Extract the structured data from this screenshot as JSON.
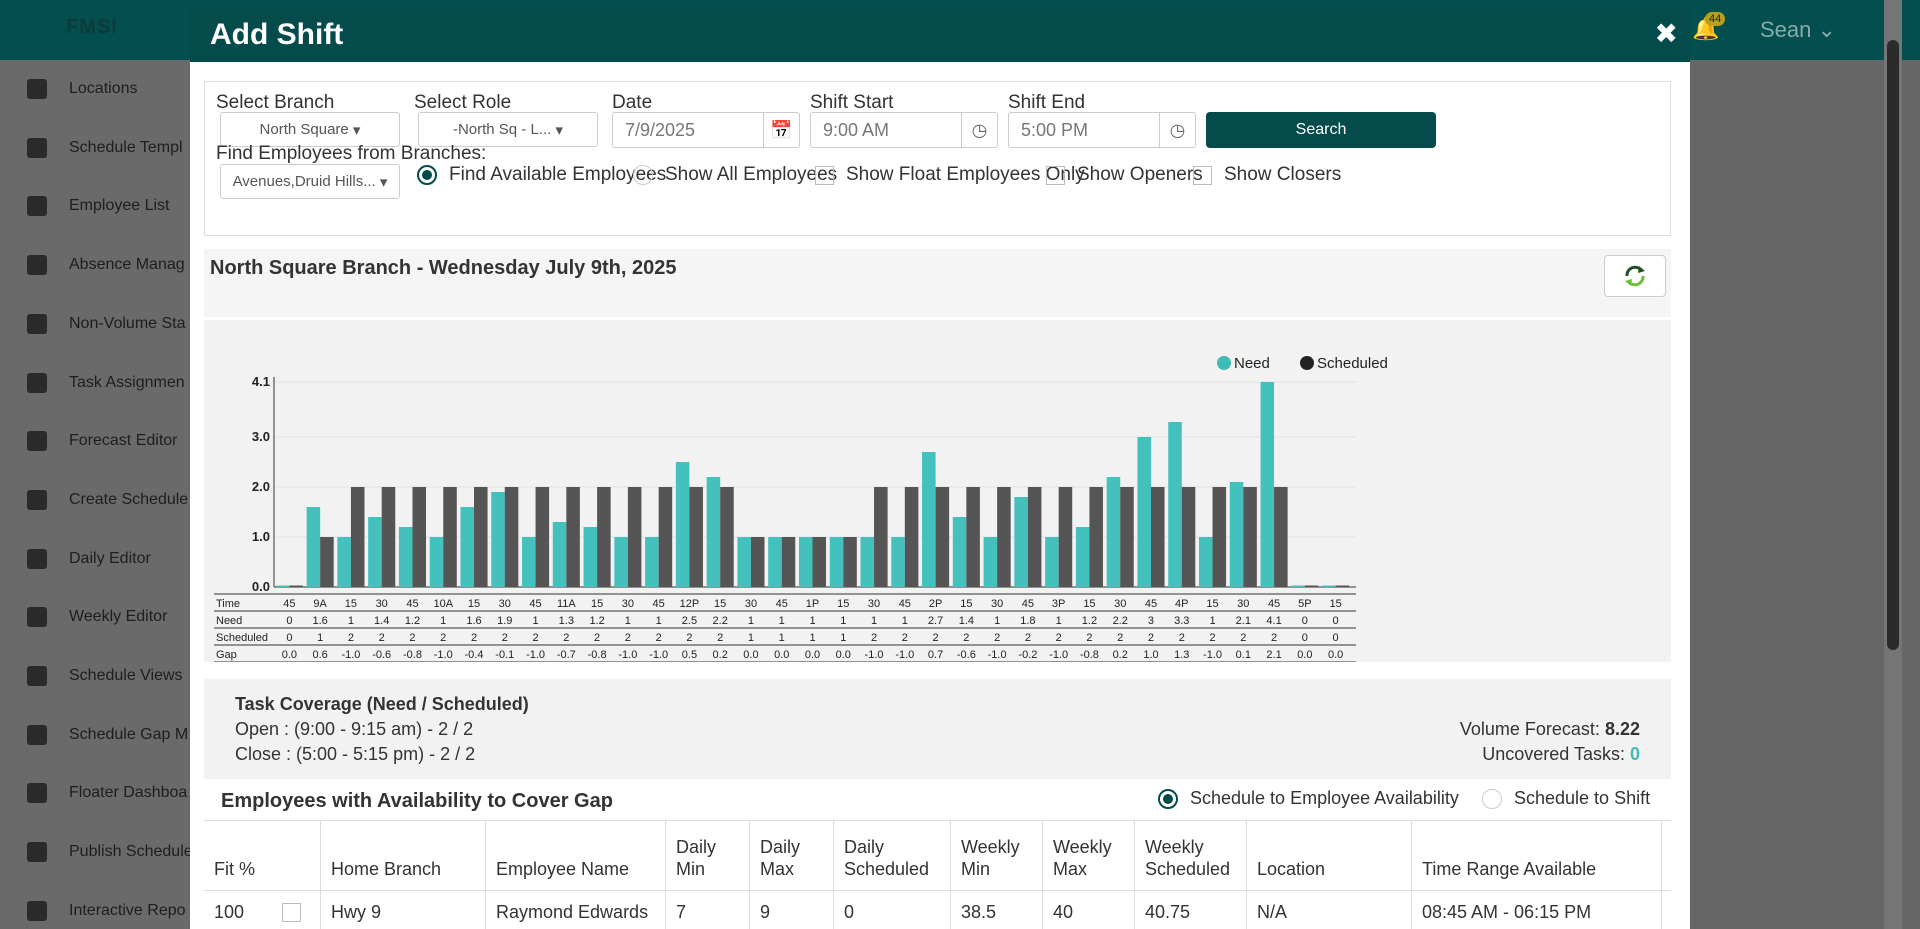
{
  "app": {
    "logo": "FMSI",
    "notifications": "44",
    "user": "Sean"
  },
  "sidebar": {
    "items": [
      {
        "label": "Locations",
        "icon": "location-icon"
      },
      {
        "label": "Schedule Templ",
        "icon": "clipboard-icon"
      },
      {
        "label": "Employee List",
        "icon": "id-card-icon"
      },
      {
        "label": "Absence Manag",
        "icon": "user-gear-icon"
      },
      {
        "label": "Non-Volume Sta",
        "icon": "id-badge-icon"
      },
      {
        "label": "Task Assignmen",
        "icon": "list-check-icon"
      },
      {
        "label": "Forecast Editor",
        "icon": "bar-chart-icon"
      },
      {
        "label": "Create Schedule",
        "icon": "calendar-plus-icon"
      },
      {
        "label": "Daily Editor",
        "icon": "calendar-day-icon"
      },
      {
        "label": "Weekly Editor",
        "icon": "calendar-week-icon"
      },
      {
        "label": "Schedule Views",
        "icon": "binoculars-icon"
      },
      {
        "label": "Schedule Gap M",
        "icon": "users-gap-icon"
      },
      {
        "label": "Floater Dashboa",
        "icon": "list-icon"
      },
      {
        "label": "Publish Schedule",
        "icon": "calendar-check-icon"
      },
      {
        "label": "Interactive Repo",
        "icon": "report-icon"
      }
    ]
  },
  "modal": {
    "title": "Add Shift",
    "filters": {
      "branch_label": "Select Branch",
      "branch_value": "North Square",
      "role_label": "Select Role",
      "role_value": "-North Sq - L...",
      "date_label": "Date",
      "date_value": "7/9/2025",
      "start_label": "Shift Start",
      "start_value": "9:00 AM",
      "end_label": "Shift End",
      "end_value": "5:00 PM",
      "search_label": "Search",
      "find_label": "Find Employees from Branches:",
      "find_value": "Avenues,Druid Hills...",
      "opt_available": "Find Available Employees",
      "opt_all": "Show All Employees",
      "opt_float": "Show Float Employees Only",
      "opt_openers": "Show Openers",
      "opt_closers": "Show Closers"
    },
    "branch_title": "North Square Branch - Wednesday July 9th, 2025",
    "coverage": {
      "title": "Task Coverage (Need / Scheduled)",
      "open": "Open : (9:00 - 9:15 am) - 2 / 2",
      "close": "Close : (5:00 - 5:15 pm) - 2 / 2",
      "volume_label": "Volume Forecast:",
      "volume_value": "8.22",
      "uncovered_label": "Uncovered Tasks:",
      "uncovered_value": "0"
    },
    "employees": {
      "title": "Employees with Availability to Cover Gap",
      "opt_availability": "Schedule to Employee Availability",
      "opt_shift": "Schedule to Shift",
      "columns": [
        "Fit %",
        "Home Branch",
        "Employee Name",
        "Daily Min",
        "Daily Max",
        "Daily Scheduled",
        "Weekly Min",
        "Weekly Max",
        "Weekly Scheduled",
        "Location",
        "Time Range Available"
      ],
      "rows": [
        [
          "100",
          "Hwy 9",
          "Raymond Edwards",
          "7",
          "9",
          "0",
          "38.5",
          "40",
          "40.75",
          "N/A",
          "08:45 AM - 06:15 PM"
        ]
      ]
    }
  },
  "chart_data": {
    "type": "bar",
    "legend_position": "top-right",
    "ylim": [
      0,
      4.1
    ],
    "yticks": [
      "0.0",
      "1.0",
      "2.0",
      "3.0",
      "4.1"
    ],
    "categories": [
      "45",
      "9A",
      "15",
      "30",
      "45",
      "10A",
      "15",
      "30",
      "45",
      "11A",
      "15",
      "30",
      "45",
      "12P",
      "15",
      "30",
      "45",
      "1P",
      "15",
      "30",
      "45",
      "2P",
      "15",
      "30",
      "45",
      "3P",
      "15",
      "30",
      "45",
      "4P",
      "15",
      "30",
      "45",
      "5P",
      "15"
    ],
    "series": [
      {
        "name": "Need",
        "color": "#45c1bd",
        "values": [
          0,
          1.6,
          1,
          1.4,
          1.2,
          1,
          1.6,
          1.9,
          1,
          1.3,
          1.2,
          1,
          1,
          2.5,
          2.2,
          1,
          1,
          1,
          1,
          1,
          1,
          2.7,
          1.4,
          1,
          1.8,
          1,
          1.2,
          2.2,
          3,
          3.3,
          1,
          2.1,
          4.1,
          0,
          0
        ]
      },
      {
        "name": "Scheduled",
        "color": "#555555",
        "values": [
          0,
          1,
          2,
          2,
          2,
          2,
          2,
          2,
          2,
          2,
          2,
          2,
          2,
          2,
          2,
          1,
          1,
          1,
          1,
          2,
          2,
          2,
          2,
          2,
          2,
          2,
          2,
          2,
          2,
          2,
          2,
          2,
          2,
          0,
          0
        ]
      }
    ],
    "table_rows": {
      "time_label": "Time",
      "need_label": "Need",
      "scheduled_label": "Scheduled",
      "gap_label": "Gap",
      "need": [
        "0",
        "1.6",
        "1",
        "1.4",
        "1.2",
        "1",
        "1.6",
        "1.9",
        "1",
        "1.3",
        "1.2",
        "1",
        "1",
        "2.5",
        "2.2",
        "1",
        "1",
        "1",
        "1",
        "1",
        "1",
        "2.7",
        "1.4",
        "1",
        "1.8",
        "1",
        "1.2",
        "2.2",
        "3",
        "3.3",
        "1",
        "2.1",
        "4.1",
        "0",
        "0"
      ],
      "scheduled": [
        "0",
        "1",
        "2",
        "2",
        "2",
        "2",
        "2",
        "2",
        "2",
        "2",
        "2",
        "2",
        "2",
        "2",
        "2",
        "1",
        "1",
        "1",
        "1",
        "2",
        "2",
        "2",
        "2",
        "2",
        "2",
        "2",
        "2",
        "2",
        "2",
        "2",
        "2",
        "2",
        "2",
        "0",
        "0"
      ],
      "gap": [
        "0.0",
        "0.6",
        "-1.0",
        "-0.6",
        "-0.8",
        "-1.0",
        "-0.4",
        "-0.1",
        "-1.0",
        "-0.7",
        "-0.8",
        "-1.0",
        "-1.0",
        "0.5",
        "0.2",
        "0.0",
        "0.0",
        "0.0",
        "0.0",
        "-1.0",
        "-1.0",
        "0.7",
        "-0.6",
        "-1.0",
        "-0.2",
        "-1.0",
        "-0.8",
        "0.2",
        "1.0",
        "1.3",
        "-1.0",
        "0.1",
        "2.1",
        "0.0",
        "0.0"
      ]
    }
  }
}
